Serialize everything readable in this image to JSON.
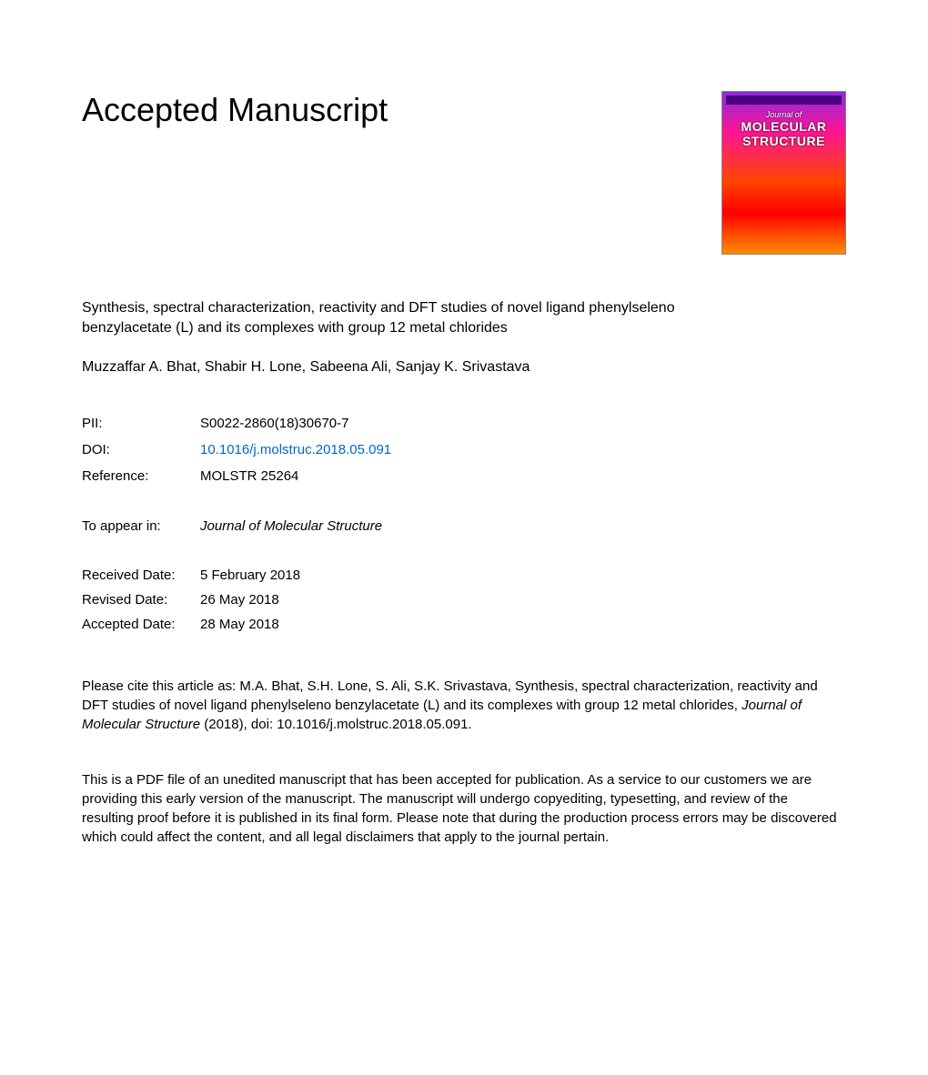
{
  "header": {
    "title": "Accepted Manuscript"
  },
  "cover": {
    "small_title": "Journal of",
    "main_title_1": "MOLECULAR",
    "main_title_2": "STRUCTURE"
  },
  "article": {
    "title": "Synthesis, spectral characterization, reactivity and DFT studies of novel ligand phenylseleno benzylacetate (L) and its complexes with group 12 metal chlorides",
    "authors": "Muzzaffar A. Bhat, Shabir H. Lone, Sabeena Ali, Sanjay K. Srivastava"
  },
  "meta": {
    "pii_label": "PII:",
    "pii_value": "S0022-2860(18)30670-7",
    "doi_label": "DOI:",
    "doi_value": "10.1016/j.molstruc.2018.05.091",
    "reference_label": "Reference:",
    "reference_value": "MOLSTR 25264",
    "appear_label": "To appear in:",
    "appear_value": "Journal of Molecular Structure"
  },
  "dates": {
    "received_label": "Received Date:",
    "received_value": "5 February 2018",
    "revised_label": "Revised Date:",
    "revised_value": "26 May 2018",
    "accepted_label": "Accepted Date:",
    "accepted_value": "28 May 2018"
  },
  "citation": {
    "prefix": "Please cite this article as: M.A. Bhat, S.H. Lone, S. Ali, S.K. Srivastava, Synthesis, spectral characterization, reactivity and DFT studies of novel ligand phenylseleno benzylacetate (L) and its complexes with group 12 metal chlorides, ",
    "journal": "Journal of Molecular Structure",
    "suffix": " (2018), doi: 10.1016/j.molstruc.2018.05.091."
  },
  "disclaimer": {
    "text": "This is a PDF file of an unedited manuscript that has been accepted for publication. As a service to our customers we are providing this early version of the manuscript. The manuscript will undergo copyediting, typesetting, and review of the resulting proof before it is published in its final form. Please note that during the production process errors may be discovered which could affect the content, and all legal disclaimers that apply to the journal pertain."
  }
}
